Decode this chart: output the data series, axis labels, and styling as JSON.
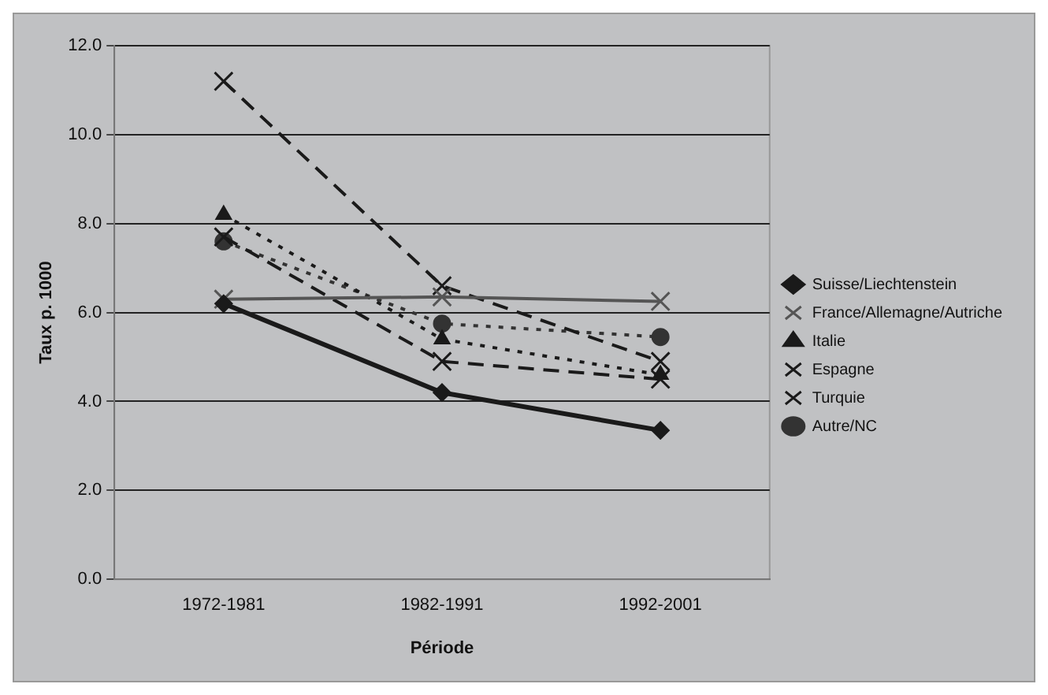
{
  "chart_data": {
    "type": "line",
    "xlabel": "Période",
    "ylabel": "Taux p. 1000",
    "categories": [
      "1972-1981",
      "1982-1991",
      "1992-2001"
    ],
    "series": [
      {
        "name": "Suisse/Liechtenstein",
        "color": "#1a1a1a",
        "values": [
          6.2,
          4.2,
          3.35
        ],
        "marker": "diamond",
        "line_style": "solid"
      },
      {
        "name": "France/Allemagne/Autriche",
        "color": "#555555",
        "values": [
          6.3,
          6.35,
          6.25
        ],
        "marker": "cross",
        "line_style": "solid"
      },
      {
        "name": "Italie",
        "color": "#1a1a1a",
        "values": [
          8.2,
          5.4,
          4.6
        ],
        "marker": "triangle",
        "line_style": "dotted"
      },
      {
        "name": "Espagne",
        "color": "#1a1a1a",
        "values": [
          7.7,
          4.9,
          4.5
        ],
        "marker": "cross",
        "line_style": "dashed"
      },
      {
        "name": "Turquie",
        "color": "#1a1a1a",
        "values": [
          11.2,
          6.6,
          4.9
        ],
        "marker": "cross",
        "line_style": "dashed"
      },
      {
        "name": "Autre/NC",
        "color": "#333333",
        "values": [
          7.6,
          5.75,
          5.45
        ],
        "marker": "circle",
        "line_style": "dotted"
      }
    ],
    "ylim": [
      0,
      12
    ],
    "yticks": [
      {
        "value": 0,
        "label": "0.0"
      },
      {
        "value": 2,
        "label": "2.0"
      },
      {
        "value": 4,
        "label": "4.0"
      },
      {
        "value": 6,
        "label": "6.0"
      },
      {
        "value": 8,
        "label": "8.0"
      },
      {
        "value": 10,
        "label": "10.0"
      },
      {
        "value": 12,
        "label": "12.0"
      }
    ],
    "grid": "y",
    "legend": "right"
  }
}
